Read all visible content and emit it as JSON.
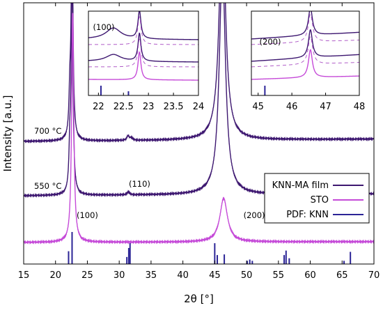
{
  "chart_data": {
    "type": "line",
    "xlabel": "2θ [°]",
    "ylabel": "Intensity [a.u.]",
    "xlim": [
      15,
      70
    ],
    "xticks": [
      "15",
      "20",
      "25",
      "30",
      "35",
      "40",
      "45",
      "50",
      "55",
      "60",
      "65",
      "70"
    ],
    "y_tick_labels": false,
    "legend": {
      "placement": "lower-right",
      "entries": [
        "KNN-MA film",
        "STO",
        "PDF: KNN"
      ]
    },
    "colors": {
      "knn_ma_film": "#3d1770",
      "sto": "#c54ad8",
      "pdf_knn": "#2b2496",
      "inset_dashed": "#b05cc8"
    },
    "series": [
      {
        "name": "KNN-MA film",
        "label": "700 °C",
        "peaks": [
          {
            "x": 22.25,
            "height": 0.48
          },
          {
            "x": 22.6,
            "height": 3.0
          },
          {
            "x": 31.4,
            "height": 0.06
          },
          {
            "x": 31.9,
            "height": 0.03
          },
          {
            "x": 46.2,
            "height": 3.0
          }
        ]
      },
      {
        "name": "KNN-MA film",
        "label": "550 °C",
        "peaks": [
          {
            "x": 22.25,
            "height": 0.5
          },
          {
            "x": 22.6,
            "height": 3.0
          },
          {
            "x": 31.4,
            "height": 0.04
          },
          {
            "x": 46.2,
            "height": 3.0
          }
        ]
      },
      {
        "name": "STO",
        "peaks": [
          {
            "x": 22.7,
            "height": 3.0
          },
          {
            "x": 46.4,
            "height": 0.57
          }
        ]
      }
    ],
    "pdf_knn_sticks": [
      {
        "x": 22.05,
        "height": 0.4
      },
      {
        "x": 22.6,
        "height": 1.0
      },
      {
        "x": 31.2,
        "height": 0.22
      },
      {
        "x": 31.5,
        "height": 0.5
      },
      {
        "x": 31.7,
        "height": 0.65
      },
      {
        "x": 45.0,
        "height": 0.65
      },
      {
        "x": 45.4,
        "height": 0.28
      },
      {
        "x": 46.5,
        "height": 0.3
      },
      {
        "x": 50.1,
        "height": 0.1
      },
      {
        "x": 50.5,
        "height": 0.14
      },
      {
        "x": 50.9,
        "height": 0.1
      },
      {
        "x": 55.9,
        "height": 0.28
      },
      {
        "x": 56.2,
        "height": 0.42
      },
      {
        "x": 56.7,
        "height": 0.18
      },
      {
        "x": 65.3,
        "height": 0.1
      },
      {
        "x": 66.3,
        "height": 0.38
      }
    ],
    "annotations": [
      {
        "text": "700 °C",
        "x": 18.8,
        "series": 0
      },
      {
        "text": "550 °C",
        "x": 18.8,
        "series": 1
      },
      {
        "text": "(110)",
        "x": 33.2,
        "series": 1
      },
      {
        "text": "(100)",
        "x": 25.0,
        "series": 2
      },
      {
        "text": "(200)",
        "x": 51.2,
        "series": 2
      }
    ],
    "insets": [
      {
        "label": "(100)",
        "xlim": [
          21.8,
          24
        ],
        "xticks": [
          "22",
          "22.5",
          "23",
          "23.5",
          "24"
        ]
      },
      {
        "label": "(200)",
        "xlim": [
          44.8,
          48
        ],
        "xticks": [
          "45",
          "46",
          "47",
          "48"
        ]
      }
    ]
  }
}
